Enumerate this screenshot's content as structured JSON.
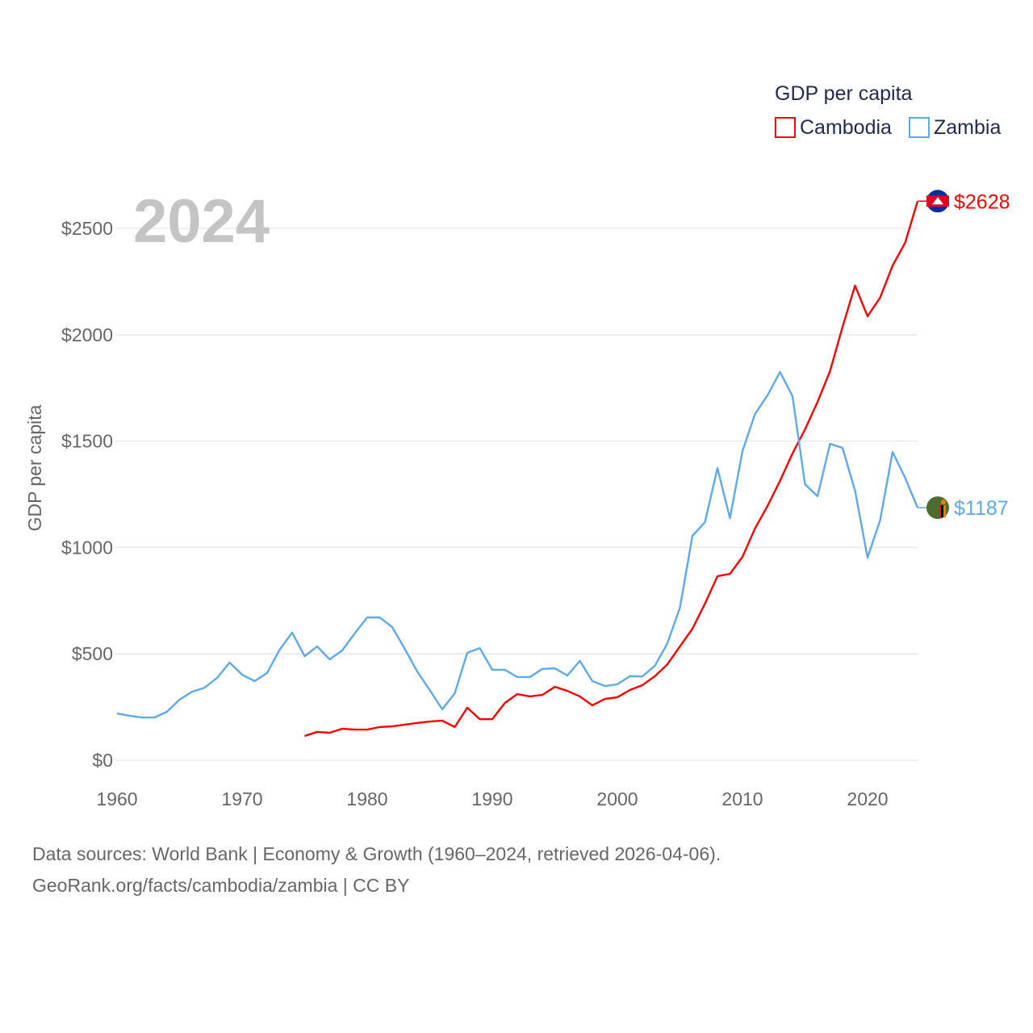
{
  "chart_data": {
    "type": "line",
    "year_label": "2024",
    "ylabel": "GDP per capita",
    "legend": {
      "title": "GDP per capita",
      "placement": "top-right"
    },
    "xlim": [
      1960,
      2024
    ],
    "ylim": [
      0,
      2700
    ],
    "xticks": [
      1960,
      1970,
      1980,
      1990,
      2000,
      2010,
      2020
    ],
    "xtick_labels": [
      "1960",
      "1970",
      "1980",
      "1990",
      "2000",
      "2010",
      "2020"
    ],
    "yticks": [
      0,
      500,
      1000,
      1500,
      2000,
      2500
    ],
    "ytick_labels": [
      "$0",
      "$500",
      "$1000",
      "$1500",
      "$2000",
      "$2500"
    ],
    "series": [
      {
        "name": "Cambodia",
        "color": "#ff0000",
        "end_label": "$2628",
        "flag": "cambodia-flag",
        "start_year": 1975,
        "values": [
          114,
          133,
          129,
          148,
          144,
          144,
          156,
          159,
          167,
          175,
          182,
          186,
          156,
          247,
          193,
          193,
          269,
          311,
          300,
          307,
          345,
          326,
          300,
          258,
          288,
          296,
          330,
          353,
          395,
          451,
          535,
          618,
          736,
          865,
          876,
          956,
          1089,
          1195,
          1313,
          1442,
          1555,
          1684,
          1829,
          2037,
          2231,
          2087,
          2174,
          2325,
          2432,
          2628
        ]
      },
      {
        "name": "Zambia",
        "color": "#5da9e9",
        "end_label": "$1187",
        "flag": "zambia-flag",
        "start_year": 1960,
        "values": [
          220,
          209,
          201,
          201,
          228,
          285,
          322,
          341,
          387,
          459,
          402,
          372,
          410,
          520,
          600,
          489,
          535,
          474,
          516,
          596,
          671,
          671,
          626,
          524,
          417,
          330,
          239,
          315,
          505,
          527,
          425,
          425,
          391,
          391,
          429,
          432,
          398,
          467,
          372,
          349,
          357,
          395,
          394,
          444,
          550,
          717,
          1055,
          1119,
          1373,
          1138,
          1453,
          1627,
          1715,
          1825,
          1711,
          1297,
          1241,
          1487,
          1468,
          1267,
          952,
          1127,
          1449,
          1328,
          1187
        ]
      }
    ]
  },
  "footer": {
    "line1": "Data sources: World Bank | Economy & Growth (1960–2024, retrieved 2026-04-06).",
    "line2": "GeoRank.org/facts/cambodia/zambia | CC BY"
  }
}
